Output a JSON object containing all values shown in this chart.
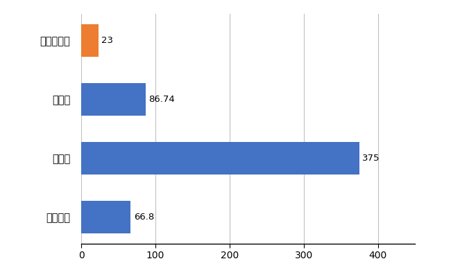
{
  "categories": [
    "周防大島町",
    "県平均",
    "県最大",
    "全国平均"
  ],
  "values": [
    23,
    86.74,
    375,
    66.8
  ],
  "bar_colors": [
    "#ed7d31",
    "#4472c4",
    "#4472c4",
    "#4472c4"
  ],
  "value_labels": [
    "23",
    "86.74",
    "375",
    "66.8"
  ],
  "xlim": [
    0,
    450
  ],
  "xticks": [
    0,
    100,
    200,
    300,
    400
  ],
  "grid_color": "#c0c0c0",
  "background_color": "#ffffff",
  "label_fontsize": 10.5,
  "value_fontsize": 9.5,
  "tick_fontsize": 10
}
